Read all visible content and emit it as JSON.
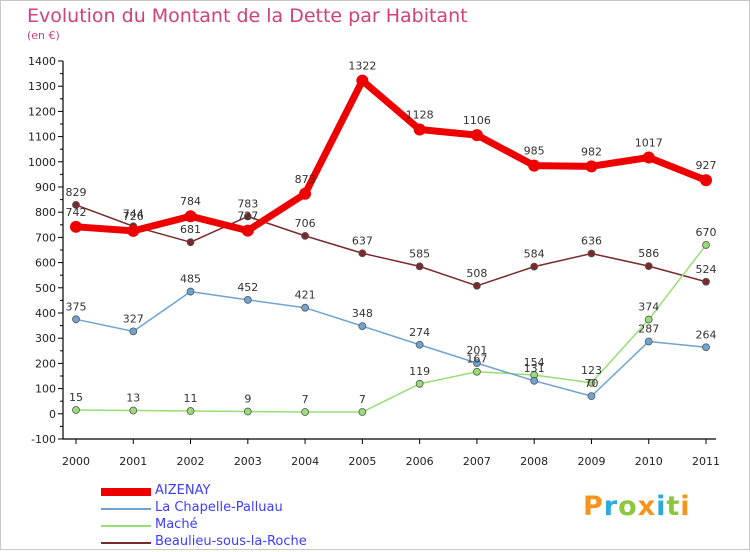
{
  "title": "Evolution du Montant de la Dette par Habitant",
  "subtitle": "(en €)",
  "logo": {
    "text": "Proxiti",
    "colors": [
      "#f7941d",
      "#29abe2",
      "#8dc63f",
      "#f7941d",
      "#29abe2",
      "#8dc63f",
      "#f7941d"
    ]
  },
  "chart_data": {
    "type": "line",
    "x": [
      "2000",
      "2001",
      "2002",
      "2003",
      "2004",
      "2005",
      "2006",
      "2007",
      "2008",
      "2009",
      "2010",
      "2011"
    ],
    "ylim": [
      -100,
      1400
    ],
    "yticks": [
      "-100",
      "0",
      "100",
      "200",
      "300",
      "400",
      "500",
      "600",
      "700",
      "800",
      "900",
      "1000",
      "1100",
      "1200",
      "1300",
      "1400"
    ],
    "grid": false,
    "legend": "bottom-left",
    "series": [
      {
        "name": "AIZENAY",
        "color": "#ee0000",
        "values": [
          742,
          726,
          784,
          727,
          873,
          1322,
          1128,
          1106,
          985,
          982,
          1017,
          927
        ],
        "labels": [
          "742",
          "726",
          "784",
          "727",
          "873",
          "1322",
          "1128",
          "1106",
          "985",
          "982",
          "1017",
          "927"
        ]
      },
      {
        "name": "La Chapelle-Palluau",
        "color": "#6fa3d2",
        "values": [
          375,
          327,
          485,
          452,
          421,
          348,
          274,
          201,
          131,
          70,
          287,
          264
        ],
        "labels": [
          "375",
          "327",
          "485",
          "452",
          "421",
          "348",
          "274",
          "201",
          "131",
          "70",
          "287",
          "264"
        ]
      },
      {
        "name": "Maché",
        "color": "#99dd77",
        "values": [
          15,
          13,
          11,
          9,
          7,
          7,
          119,
          167,
          154,
          123,
          374,
          670
        ],
        "labels": [
          "15",
          "13",
          "11",
          "9",
          "7",
          "7",
          "119",
          "167",
          "154",
          "123",
          "374",
          "670"
        ]
      },
      {
        "name": "Beaulieu-sous-la-Roche",
        "color": "#7a2a2a",
        "values": [
          829,
          744,
          681,
          783,
          706,
          637,
          585,
          508,
          584,
          636,
          586,
          524
        ],
        "labels": [
          "829",
          "744",
          "681",
          "783",
          "706",
          "637",
          "585",
          "508",
          "584",
          "636",
          "586",
          "524"
        ]
      }
    ]
  }
}
